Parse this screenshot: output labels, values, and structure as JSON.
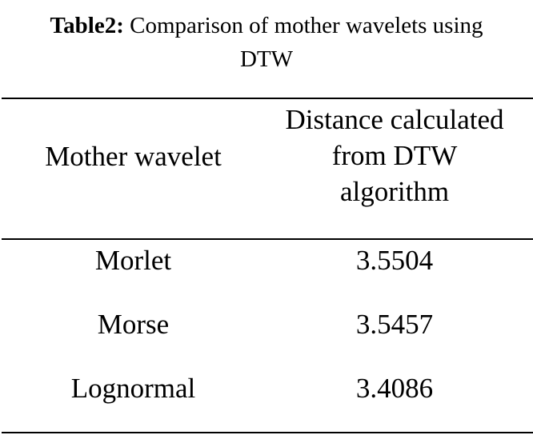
{
  "caption": {
    "label": "Table2:",
    "text_line1": " Comparison of mother wavelets using",
    "text_line2": "DTW"
  },
  "table": {
    "headers": {
      "col1": "Mother wavelet",
      "col2_lines": [
        "Distance calculated",
        "from DTW",
        "algorithm"
      ]
    },
    "rows": [
      {
        "name": "Morlet",
        "value": "3.5504"
      },
      {
        "name": "Morse",
        "value": "3.5457"
      },
      {
        "name": "Lognormal",
        "value": "3.4086"
      }
    ]
  }
}
